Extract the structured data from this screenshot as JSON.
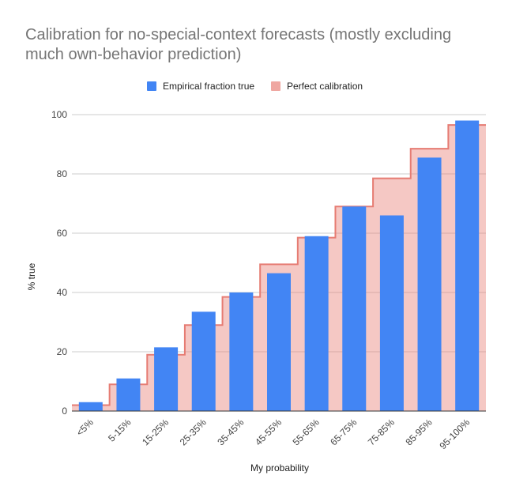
{
  "chart_data": {
    "type": "bar",
    "title": "Calibration for no-special-context forecasts (mostly excluding much own-behavior prediction)",
    "xlabel": "My probability",
    "ylabel": "% true",
    "categories": [
      "<5%",
      "5-15%",
      "15-25%",
      "25-35%",
      "35-45%",
      "45-55%",
      "55-65%",
      "65-75%",
      "75-85%",
      "85-95%",
      "95-100%"
    ],
    "series": [
      {
        "name": "Empirical fraction true",
        "type": "bar",
        "color": "#4285f4",
        "values": [
          3,
          11,
          21.5,
          33.5,
          40,
          46.5,
          59,
          69,
          66,
          85.5,
          98
        ]
      },
      {
        "name": "Perfect calibration",
        "type": "stepped-area",
        "color": "#e67c73",
        "values": [
          2,
          9,
          19,
          29,
          38.5,
          49.5,
          58.5,
          69,
          78.5,
          88.5,
          96.5
        ]
      }
    ],
    "ylim": [
      0,
      100
    ],
    "yticks": [
      0,
      20,
      40,
      60,
      80,
      100
    ],
    "grid": true,
    "legend_position": "top"
  }
}
